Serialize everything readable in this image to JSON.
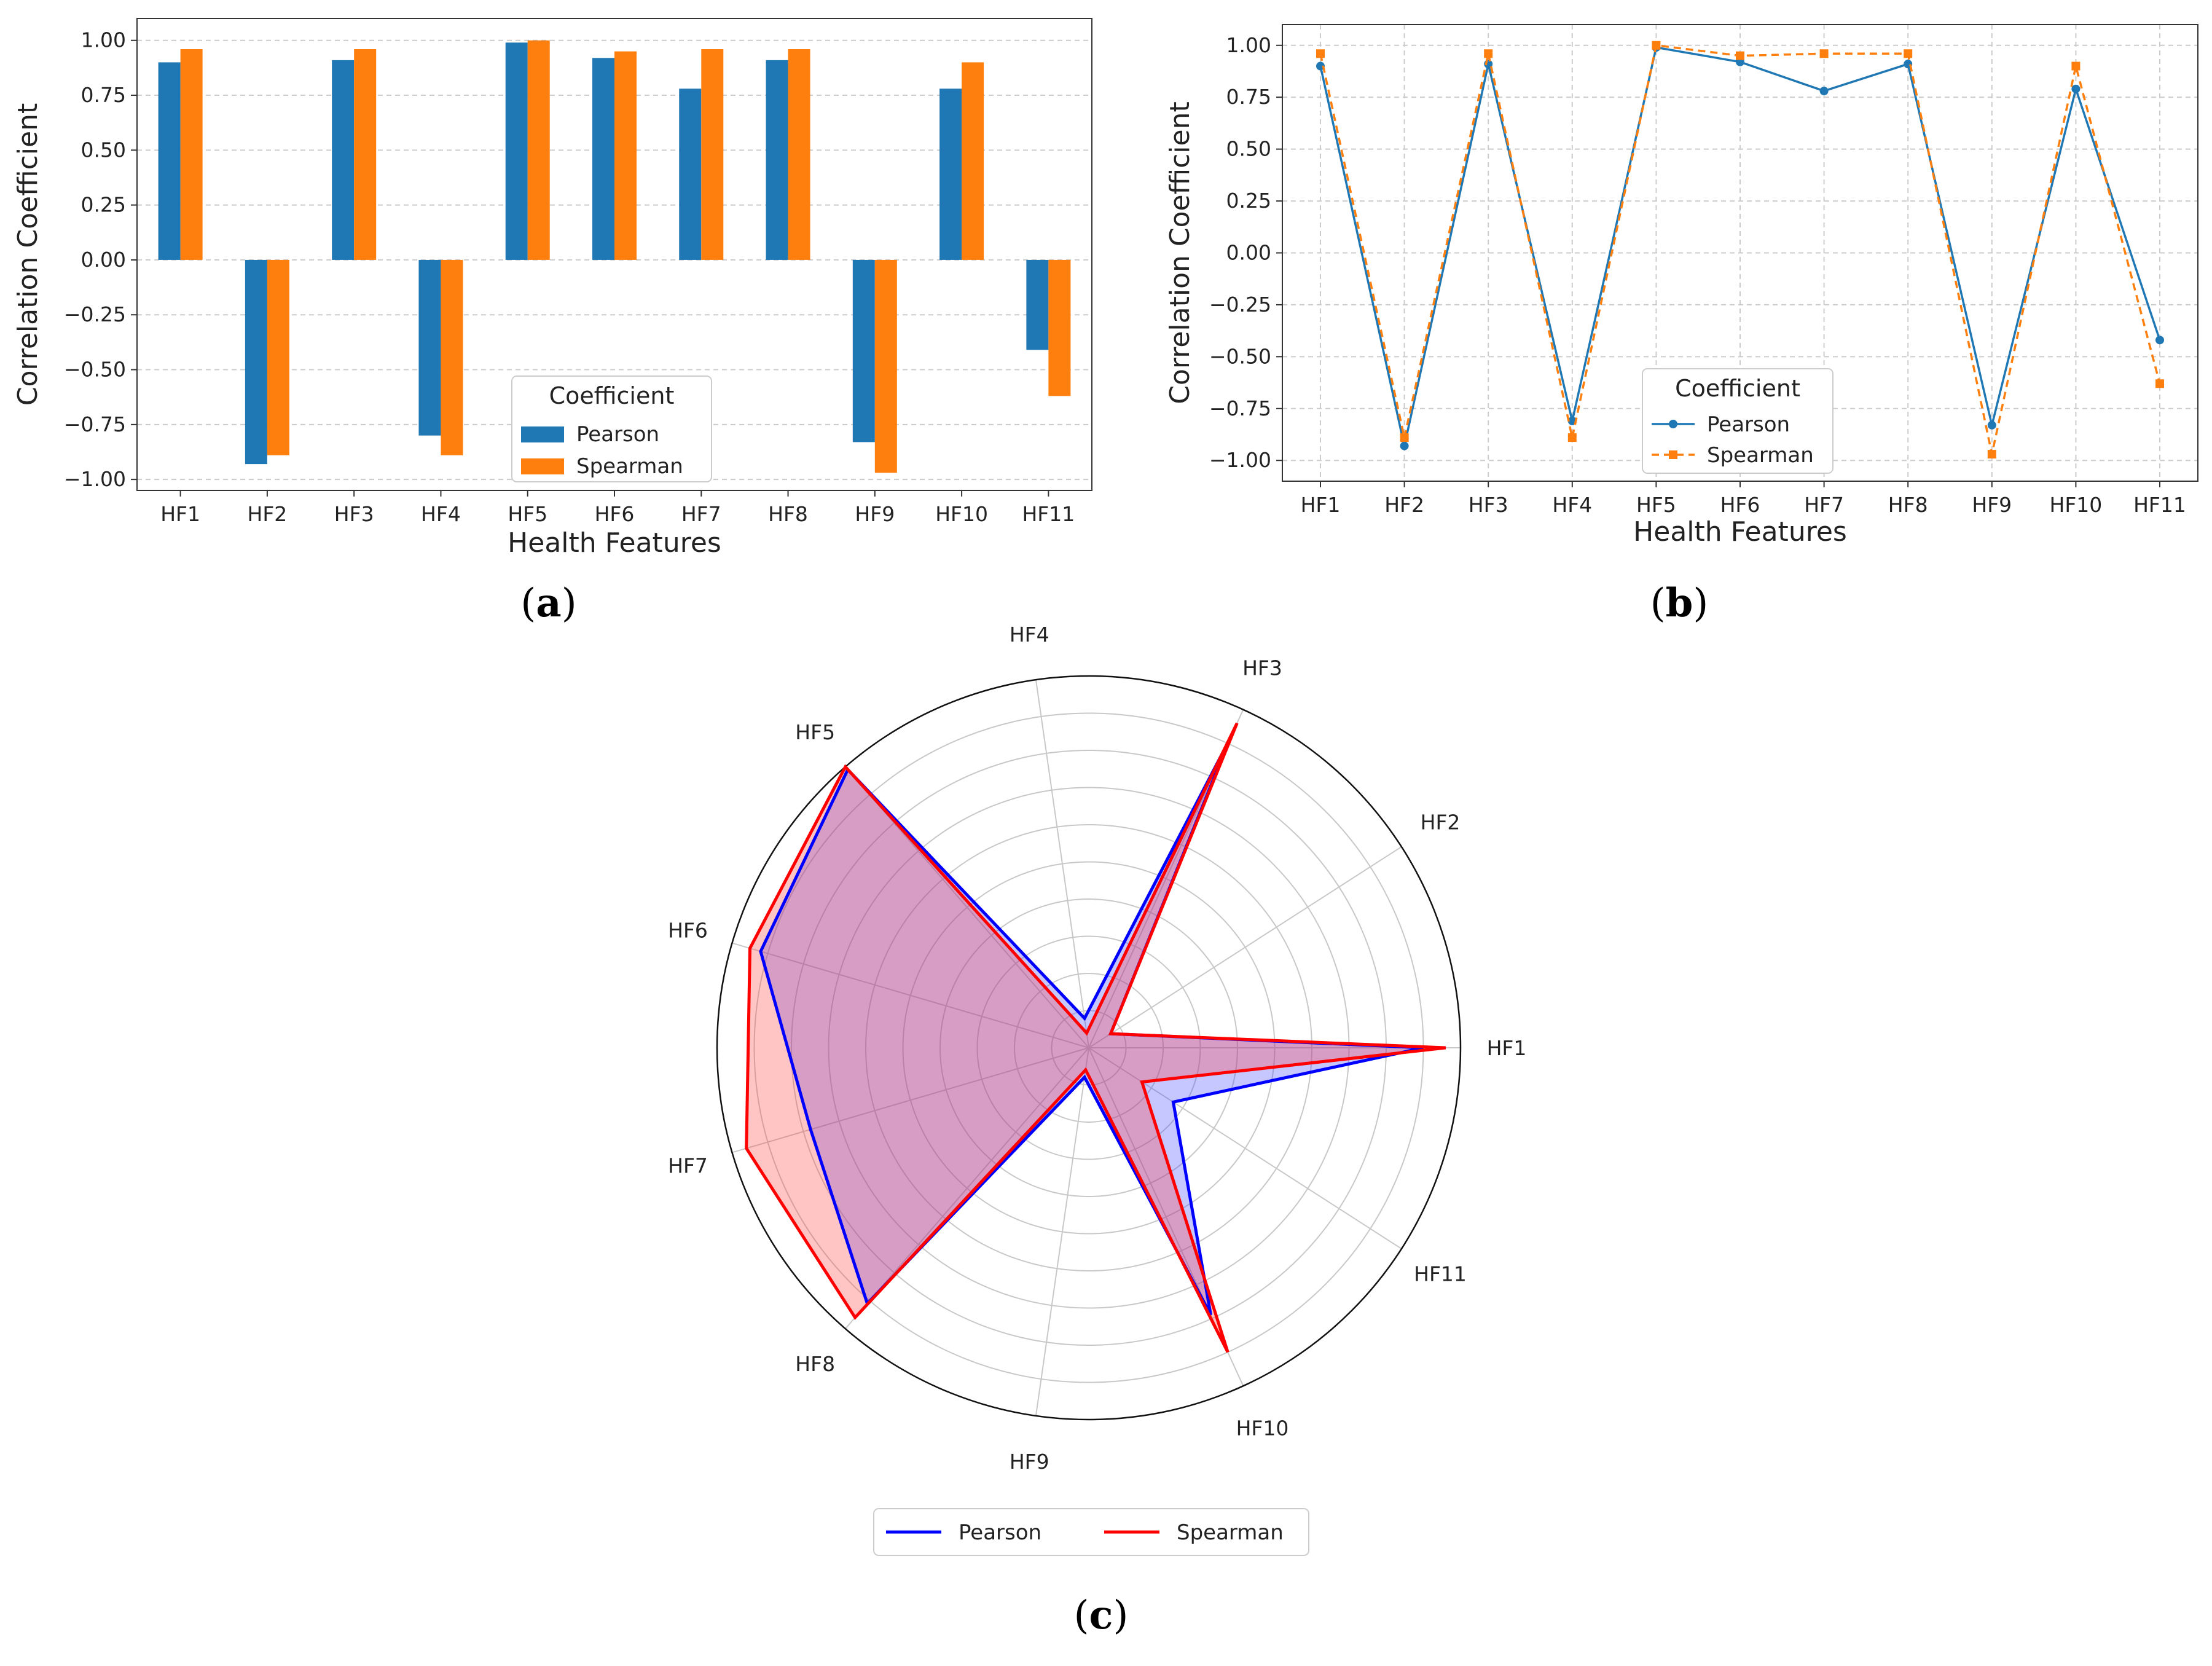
{
  "panel_labels": [
    "a",
    "b",
    "c"
  ],
  "colors": {
    "pearson_bar": "#1f77b4",
    "spearman_bar": "#ff7f0e",
    "pearson_radar": "#0000ff",
    "spearman_radar": "#ff0000"
  },
  "chart_data": [
    {
      "type": "bar",
      "panel": "a",
      "categories": [
        "HF1",
        "HF2",
        "HF3",
        "HF4",
        "HF5",
        "HF6",
        "HF7",
        "HF8",
        "HF9",
        "HF10",
        "HF11"
      ],
      "series": [
        {
          "name": "Pearson",
          "values": [
            0.9,
            -0.93,
            0.91,
            -0.8,
            0.99,
            0.92,
            0.78,
            0.91,
            -0.83,
            0.78,
            -0.41
          ]
        },
        {
          "name": "Spearman",
          "values": [
            0.96,
            -0.89,
            0.96,
            -0.89,
            1.0,
            0.95,
            0.96,
            0.96,
            -0.97,
            0.9,
            -0.62
          ]
        }
      ],
      "xlabel": "Health Features",
      "ylabel": "Correlation Coefficient",
      "ylim": [
        -1.05,
        1.1
      ],
      "yticks": [
        "−1.00",
        "−0.75",
        "−0.50",
        "−0.25",
        "0.00",
        "0.25",
        "0.50",
        "0.75",
        "1.00"
      ],
      "legend_title": "Coefficient",
      "legend_position": "lower-center",
      "grid": true
    },
    {
      "type": "line",
      "panel": "b",
      "categories": [
        "HF1",
        "HF2",
        "HF3",
        "HF4",
        "HF5",
        "HF6",
        "HF7",
        "HF8",
        "HF9",
        "HF10",
        "HF11"
      ],
      "series": [
        {
          "name": "Pearson",
          "values": [
            0.9,
            -0.93,
            0.91,
            -0.81,
            0.99,
            0.92,
            0.78,
            0.91,
            -0.83,
            0.79,
            -0.42
          ],
          "style": "solid-circle"
        },
        {
          "name": "Spearman",
          "values": [
            0.96,
            -0.89,
            0.96,
            -0.89,
            1.0,
            0.95,
            0.96,
            0.96,
            -0.97,
            0.9,
            -0.63
          ],
          "style": "dashed-square"
        }
      ],
      "xlabel": "Health Features",
      "ylabel": "Correlation Coefficient",
      "ylim": [
        -1.1,
        1.1
      ],
      "yticks": [
        "−1.00",
        "−0.75",
        "−0.50",
        "−0.25",
        "0.00",
        "0.25",
        "0.50",
        "0.75",
        "1.00"
      ],
      "legend_title": "Coefficient",
      "legend_position": "lower-center",
      "grid": true
    },
    {
      "type": "radar",
      "panel": "c",
      "categories": [
        "HF1",
        "HF2",
        "HF3",
        "HF4",
        "HF5",
        "HF6",
        "HF7",
        "HF8",
        "HF9",
        "HF10",
        "HF11"
      ],
      "series": [
        {
          "name": "Pearson",
          "values": [
            0.9,
            0.07,
            0.91,
            0.08,
            0.99,
            0.92,
            0.78,
            0.91,
            0.08,
            0.79,
            0.27
          ]
        },
        {
          "name": "Spearman",
          "values": [
            0.96,
            0.07,
            0.96,
            0.04,
            1.0,
            0.95,
            0.96,
            0.96,
            0.06,
            0.9,
            0.17
          ]
        }
      ],
      "rlim": [
        0,
        1.0
      ],
      "grid_rings": 9,
      "legend_position": "bottom-center"
    }
  ]
}
